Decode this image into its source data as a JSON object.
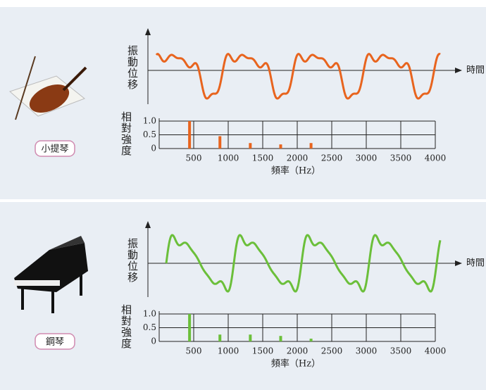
{
  "chart_data": [
    {
      "type": "bar",
      "instrument": "小提琴",
      "waveform_label": "振動位移",
      "time_label": "時間",
      "ylabel": "相對強度",
      "xlabel": "頻率（Hz）",
      "color": "#e8641e",
      "x": [
        440,
        880,
        1320,
        1760,
        2200
      ],
      "values": [
        1.0,
        0.45,
        0.2,
        0.15,
        0.2
      ],
      "xlim": [
        0,
        4000
      ],
      "xticks": [
        500,
        1000,
        1500,
        2000,
        2500,
        3000,
        3500,
        4000
      ],
      "ylim": [
        0,
        1
      ],
      "yticks": [
        {
          "value": 1,
          "label": "1.0"
        },
        0.5,
        0
      ],
      "grid": true
    },
    {
      "type": "bar",
      "instrument": "鋼琴",
      "waveform_label": "振動位移",
      "time_label": "時間",
      "ylabel": "相對強度",
      "xlabel": "頻率（Hz）",
      "color": "#6bbf3a",
      "x": [
        440,
        880,
        1320,
        1760,
        2200
      ],
      "values": [
        1.0,
        0.25,
        0.25,
        0.2,
        0.1
      ],
      "xlim": [
        0,
        4000
      ],
      "xticks": [
        500,
        1000,
        1500,
        2000,
        2500,
        3000,
        3500,
        4000
      ],
      "ylim": [
        0,
        1
      ],
      "yticks": [
        {
          "value": 1,
          "label": "1.0"
        },
        0.5,
        0
      ],
      "grid": true
    }
  ]
}
